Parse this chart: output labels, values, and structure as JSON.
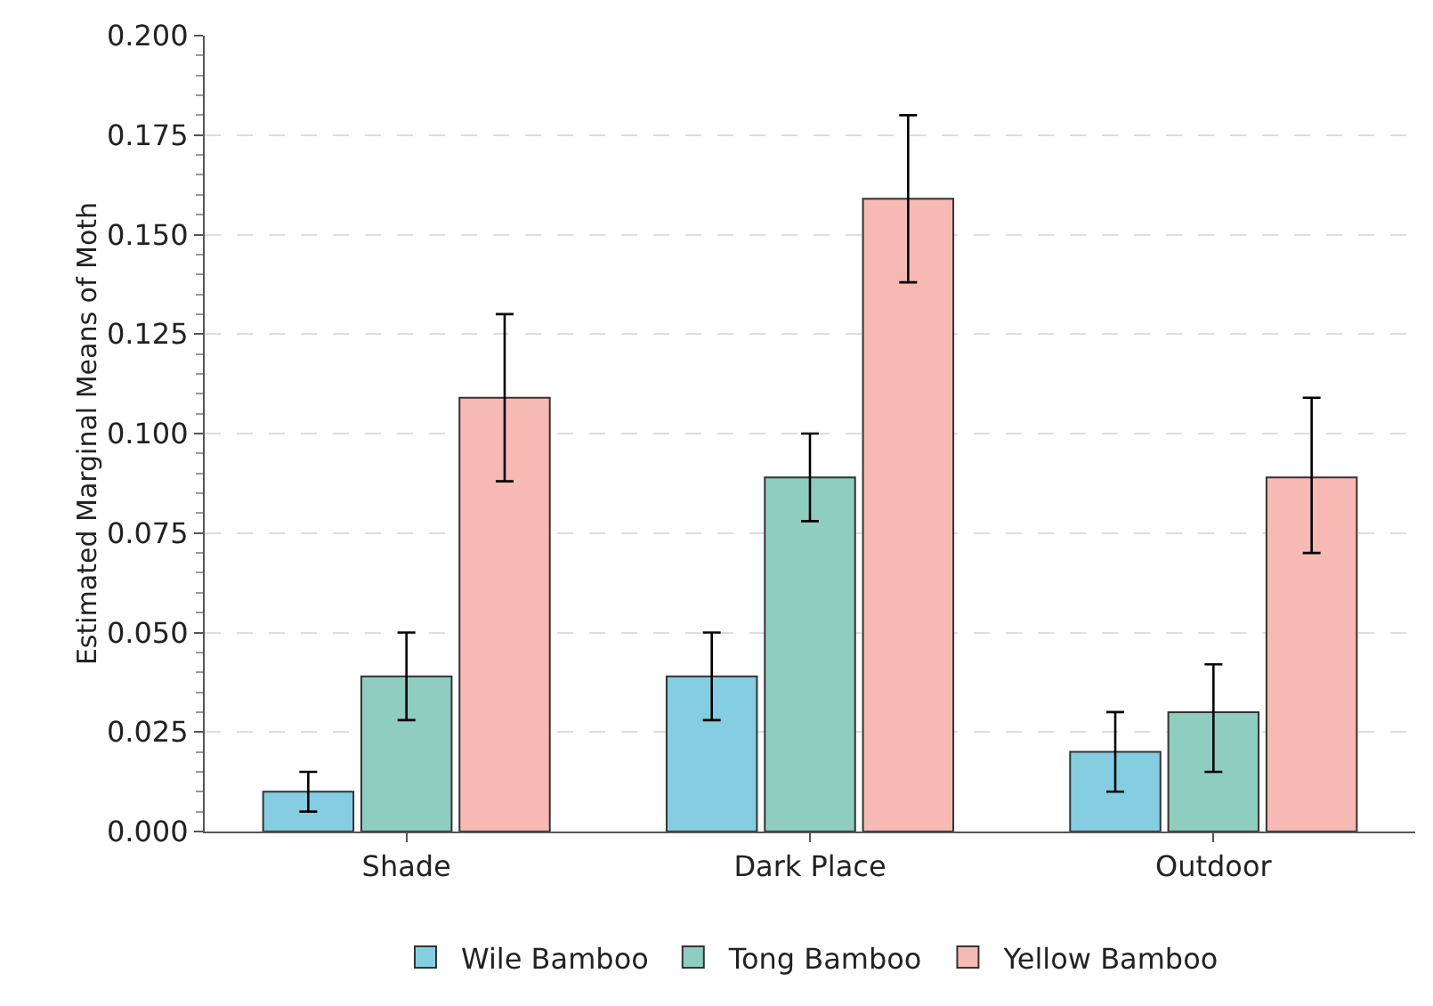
{
  "chart_data": {
    "type": "bar",
    "ylabel": "Estimated Marginal Means of Moth",
    "categories": [
      "Shade",
      "Dark Place",
      "Outdoor"
    ],
    "series": [
      {
        "name": "Wile Bamboo",
        "color": "#85cde0",
        "values": [
          0.01,
          0.039,
          0.02
        ],
        "errors": [
          [
            0.005,
            0.015
          ],
          [
            0.028,
            0.05
          ],
          [
            0.01,
            0.03
          ]
        ]
      },
      {
        "name": "Tong Bamboo",
        "color": "#8ecdc0",
        "values": [
          0.039,
          0.089,
          0.03
        ],
        "errors": [
          [
            0.028,
            0.05
          ],
          [
            0.078,
            0.1
          ],
          [
            0.015,
            0.042
          ]
        ]
      },
      {
        "name": "Yellow Bamboo",
        "color": "#f6b9b4",
        "values": [
          0.109,
          0.159,
          0.089
        ],
        "errors": [
          [
            0.088,
            0.13
          ],
          [
            0.138,
            0.18
          ],
          [
            0.07,
            0.109
          ]
        ]
      }
    ],
    "ylim": [
      0,
      0.2
    ],
    "yticks": [
      {
        "value": 0,
        "label": "0.000"
      },
      {
        "value": 0.025,
        "label": "0.025"
      },
      {
        "value": 0.05,
        "label": "0.050"
      },
      {
        "value": 0.075,
        "label": "0.075"
      },
      {
        "value": 0.1,
        "label": "0.100"
      },
      {
        "value": 0.125,
        "label": "0.125"
      },
      {
        "value": 0.15,
        "label": "0.150"
      },
      {
        "value": 0.175,
        "label": "0.175"
      },
      {
        "value": 0.2,
        "label": "0.200"
      }
    ],
    "grid": "y",
    "legend": "bottom"
  }
}
